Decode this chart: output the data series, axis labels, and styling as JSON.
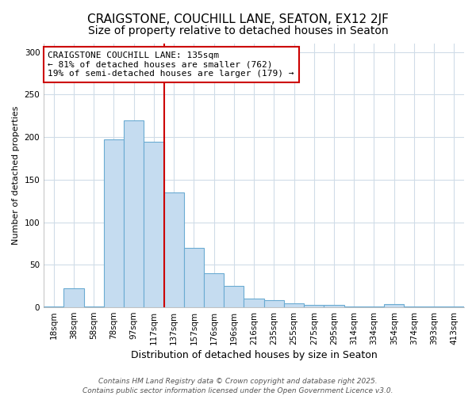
{
  "title1": "CRAIGSTONE, COUCHILL LANE, SEATON, EX12 2JF",
  "title2": "Size of property relative to detached houses in Seaton",
  "xlabel": "Distribution of detached houses by size in Seaton",
  "ylabel": "Number of detached properties",
  "categories": [
    "18sqm",
    "38sqm",
    "58sqm",
    "78sqm",
    "97sqm",
    "117sqm",
    "137sqm",
    "157sqm",
    "176sqm",
    "196sqm",
    "216sqm",
    "235sqm",
    "255sqm",
    "275sqm",
    "295sqm",
    "314sqm",
    "334sqm",
    "354sqm",
    "374sqm",
    "393sqm",
    "413sqm"
  ],
  "values": [
    1,
    22,
    1,
    197,
    220,
    195,
    135,
    70,
    40,
    25,
    10,
    8,
    5,
    3,
    3,
    1,
    1,
    4,
    1,
    1,
    1
  ],
  "bar_color": "#c5dcf0",
  "bar_edge_color": "#6aabd2",
  "red_line_index": 6,
  "red_line_color": "#cc0000",
  "annotation_text": "CRAIGSTONE COUCHILL LANE: 135sqm\n← 81% of detached houses are smaller (762)\n19% of semi-detached houses are larger (179) →",
  "annotation_box_facecolor": "#ffffff",
  "annotation_box_edgecolor": "#cc0000",
  "footnote": "Contains HM Land Registry data © Crown copyright and database right 2025.\nContains public sector information licensed under the Open Government Licence v3.0.",
  "ylim": [
    0,
    310
  ],
  "bg_color": "#ffffff",
  "plot_bg_color": "#ffffff",
  "grid_color": "#d0dce8",
  "title1_fontsize": 11,
  "title2_fontsize": 10,
  "xlabel_fontsize": 9,
  "ylabel_fontsize": 8,
  "tick_fontsize": 7.5,
  "annotation_fontsize": 8,
  "footnote_fontsize": 6.5
}
